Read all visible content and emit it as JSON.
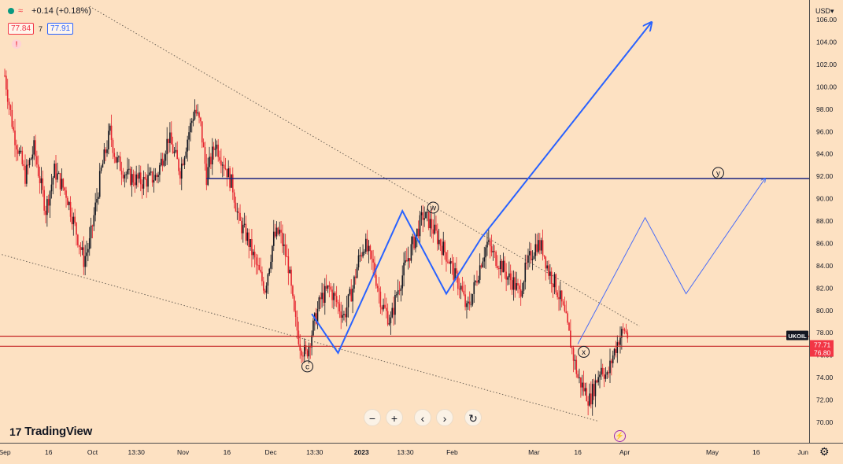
{
  "header": {
    "change": "+0.14 (+0.18%)",
    "bid": "77.84",
    "spread": "7",
    "ask": "77.91",
    "alert_symbol": "!"
  },
  "currency_label": "USD",
  "brand": {
    "logo_glyph": "17",
    "name": "TradingView"
  },
  "nav": {
    "zoom_out": "−",
    "zoom_in": "+",
    "back": "‹",
    "forward": "›",
    "reset": "↻"
  },
  "colors": {
    "background": "#fde1c2",
    "up_candle": "#131722",
    "down_candle": "#e5242e",
    "wave_line": "#2962ff",
    "resistance_line": "#1a237e",
    "support_lines": "#c62828",
    "trend_lines": "#6b6257",
    "current_price_tag": "#f23645",
    "symbol_tag": "#131722"
  },
  "chart_data": {
    "type": "candlestick",
    "symbol": "UKOIL",
    "price_tag": "77.71",
    "price_tag_2": "76.80",
    "x_ticks": [
      "Sep",
      "16",
      "Oct",
      "13:30",
      "Nov",
      "16",
      "Dec",
      "13:30",
      "2023",
      "13:30",
      "Feb",
      "Mar",
      "16",
      "Apr",
      "May",
      "16",
      "Jun"
    ],
    "x_tick_days": [
      0,
      15,
      30,
      45,
      61,
      76,
      91,
      106,
      122,
      137,
      153,
      181,
      196,
      212,
      242,
      257,
      273
    ],
    "y_ticks": [
      "70.00",
      "72.00",
      "74.00",
      "76.00",
      "78.00",
      "80.00",
      "82.00",
      "84.00",
      "86.00",
      "88.00",
      "90.00",
      "92.00",
      "94.00",
      "96.00",
      "98.00",
      "100.00",
      "102.00",
      "104.00",
      "106.00"
    ],
    "ylim": [
      68.3,
      107.0
    ],
    "close_path": [
      {
        "day": 0,
        "price": 101.0
      },
      {
        "day": 3,
        "price": 96.0
      },
      {
        "day": 7,
        "price": 92.0
      },
      {
        "day": 10,
        "price": 94.5
      },
      {
        "day": 14,
        "price": 89.0
      },
      {
        "day": 17,
        "price": 92.5
      },
      {
        "day": 21,
        "price": 90.5
      },
      {
        "day": 25,
        "price": 86.5
      },
      {
        "day": 27,
        "price": 84.5
      },
      {
        "day": 29,
        "price": 86.0
      },
      {
        "day": 33,
        "price": 92.5
      },
      {
        "day": 36,
        "price": 96.0
      },
      {
        "day": 38,
        "price": 93.5
      },
      {
        "day": 42,
        "price": 92.0
      },
      {
        "day": 47,
        "price": 91.5
      },
      {
        "day": 52,
        "price": 92.0
      },
      {
        "day": 56,
        "price": 95.5
      },
      {
        "day": 60,
        "price": 92.5
      },
      {
        "day": 63,
        "price": 96.0
      },
      {
        "day": 65,
        "price": 98.0
      },
      {
        "day": 67,
        "price": 96.5
      },
      {
        "day": 69,
        "price": 92.0
      },
      {
        "day": 72,
        "price": 95.0
      },
      {
        "day": 76,
        "price": 92.5
      },
      {
        "day": 78,
        "price": 91.0
      },
      {
        "day": 80,
        "price": 88.0
      },
      {
        "day": 83,
        "price": 86.5
      },
      {
        "day": 86,
        "price": 84.0
      },
      {
        "day": 89,
        "price": 82.0
      },
      {
        "day": 92,
        "price": 86.5
      },
      {
        "day": 94,
        "price": 87.0
      },
      {
        "day": 97,
        "price": 84.0
      },
      {
        "day": 99,
        "price": 79.5
      },
      {
        "day": 101,
        "price": 77.0
      },
      {
        "day": 103,
        "price": 76.0
      },
      {
        "day": 106,
        "price": 79.0
      },
      {
        "day": 108,
        "price": 81.0
      },
      {
        "day": 111,
        "price": 82.0
      },
      {
        "day": 114,
        "price": 80.5
      },
      {
        "day": 116,
        "price": 79.5
      },
      {
        "day": 119,
        "price": 82.0
      },
      {
        "day": 121,
        "price": 84.5
      },
      {
        "day": 123,
        "price": 86.0
      },
      {
        "day": 126,
        "price": 84.0
      },
      {
        "day": 129,
        "price": 80.5
      },
      {
        "day": 132,
        "price": 79.0
      },
      {
        "day": 134,
        "price": 81.5
      },
      {
        "day": 137,
        "price": 84.0
      },
      {
        "day": 139,
        "price": 85.5
      },
      {
        "day": 141,
        "price": 87.0
      },
      {
        "day": 143,
        "price": 88.5
      },
      {
        "day": 145,
        "price": 88.0
      },
      {
        "day": 147,
        "price": 87.0
      },
      {
        "day": 149,
        "price": 86.0
      },
      {
        "day": 152,
        "price": 84.5
      },
      {
        "day": 154,
        "price": 83.0
      },
      {
        "day": 156,
        "price": 82.0
      },
      {
        "day": 158,
        "price": 80.0
      },
      {
        "day": 160,
        "price": 81.5
      },
      {
        "day": 163,
        "price": 84.5
      },
      {
        "day": 165,
        "price": 86.0
      },
      {
        "day": 167,
        "price": 85.0
      },
      {
        "day": 170,
        "price": 84.0
      },
      {
        "day": 172,
        "price": 83.0
      },
      {
        "day": 174,
        "price": 82.5
      },
      {
        "day": 176,
        "price": 81.5
      },
      {
        "day": 178,
        "price": 83.5
      },
      {
        "day": 180,
        "price": 85.0
      },
      {
        "day": 182,
        "price": 86.0
      },
      {
        "day": 184,
        "price": 85.5
      },
      {
        "day": 186,
        "price": 83.5
      },
      {
        "day": 188,
        "price": 82.5
      },
      {
        "day": 190,
        "price": 81.0
      },
      {
        "day": 192,
        "price": 79.0
      },
      {
        "day": 194,
        "price": 76.5
      },
      {
        "day": 196,
        "price": 74.0
      },
      {
        "day": 198,
        "price": 73.0
      },
      {
        "day": 200,
        "price": 72.0
      },
      {
        "day": 202,
        "price": 73.5
      },
      {
        "day": 204,
        "price": 75.0
      },
      {
        "day": 206,
        "price": 74.0
      },
      {
        "day": 208,
        "price": 76.0
      },
      {
        "day": 210,
        "price": 77.5
      },
      {
        "day": 212,
        "price": 78.3
      },
      {
        "day": 213,
        "price": 77.7
      }
    ],
    "annotations": {
      "wave_labels": [
        {
          "label": "c",
          "day": 103.5,
          "price": 75.0
        },
        {
          "label": "w",
          "day": 146.5,
          "price": 89.2
        },
        {
          "label": "x",
          "day": 198,
          "price": 76.3
        },
        {
          "label": "y",
          "day": 244,
          "price": 92.3
        }
      ],
      "resistance_level": 91.8,
      "resistance_from_day": 69,
      "support_levels": [
        77.7,
        76.8
      ],
      "trend_lines": [
        [
          {
            "day": 29,
            "price": 107.2
          },
          {
            "day": 217,
            "price": 78.6
          }
        ],
        [
          {
            "day": -1,
            "price": 85.0
          },
          {
            "day": 203,
            "price": 70.1
          }
        ]
      ],
      "wave_paths": {
        "main": [
          {
            "day": 105,
            "price": 79.7
          },
          {
            "day": 114,
            "price": 76.2
          },
          {
            "day": 136,
            "price": 88.9
          },
          {
            "day": 151,
            "price": 81.5
          },
          {
            "day": 163,
            "price": 86.5
          },
          {
            "day": 221,
            "price": 105.7
          }
        ],
        "projection": [
          {
            "day": 196,
            "price": 77.0
          },
          {
            "day": 219,
            "price": 88.3
          },
          {
            "day": 233,
            "price": 81.5
          },
          {
            "day": 260,
            "price": 91.8
          }
        ]
      }
    }
  }
}
